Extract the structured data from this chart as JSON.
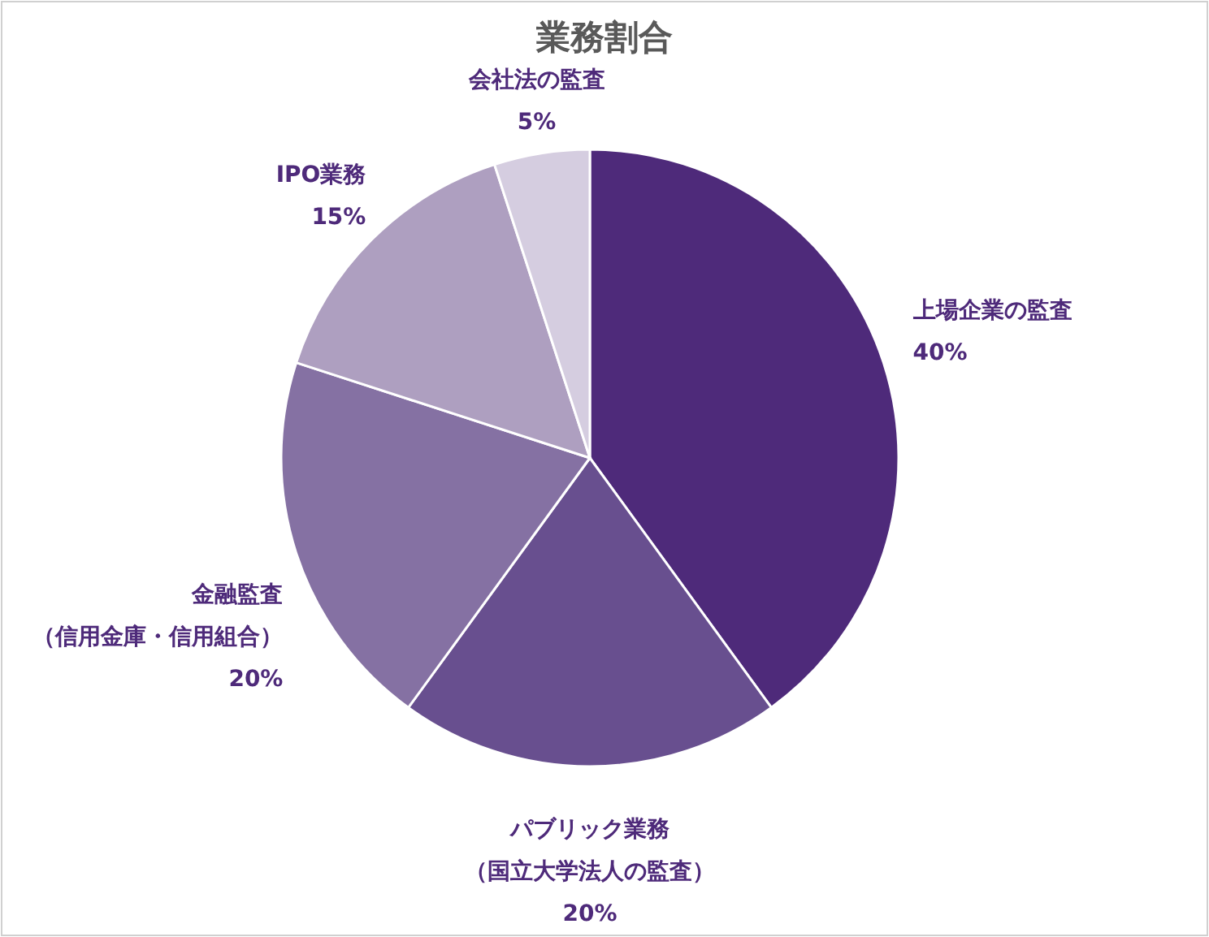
{
  "chart_data": {
    "type": "pie",
    "title": "業務割合",
    "categories": [
      "上場企業の監査",
      "パブリック業務（国立大学法人の監査）",
      "金融監査（信用金庫・信用組合）",
      "IPO業務",
      "会社法の監査"
    ],
    "values": [
      40,
      20,
      20,
      15,
      5
    ],
    "value_labels": [
      "40%",
      "20%",
      "20%",
      "15%",
      "5%"
    ],
    "colors": [
      "#4e2a7a",
      "#684f8f",
      "#8571a3",
      "#ae9fc0",
      "#d5cde0"
    ]
  }
}
